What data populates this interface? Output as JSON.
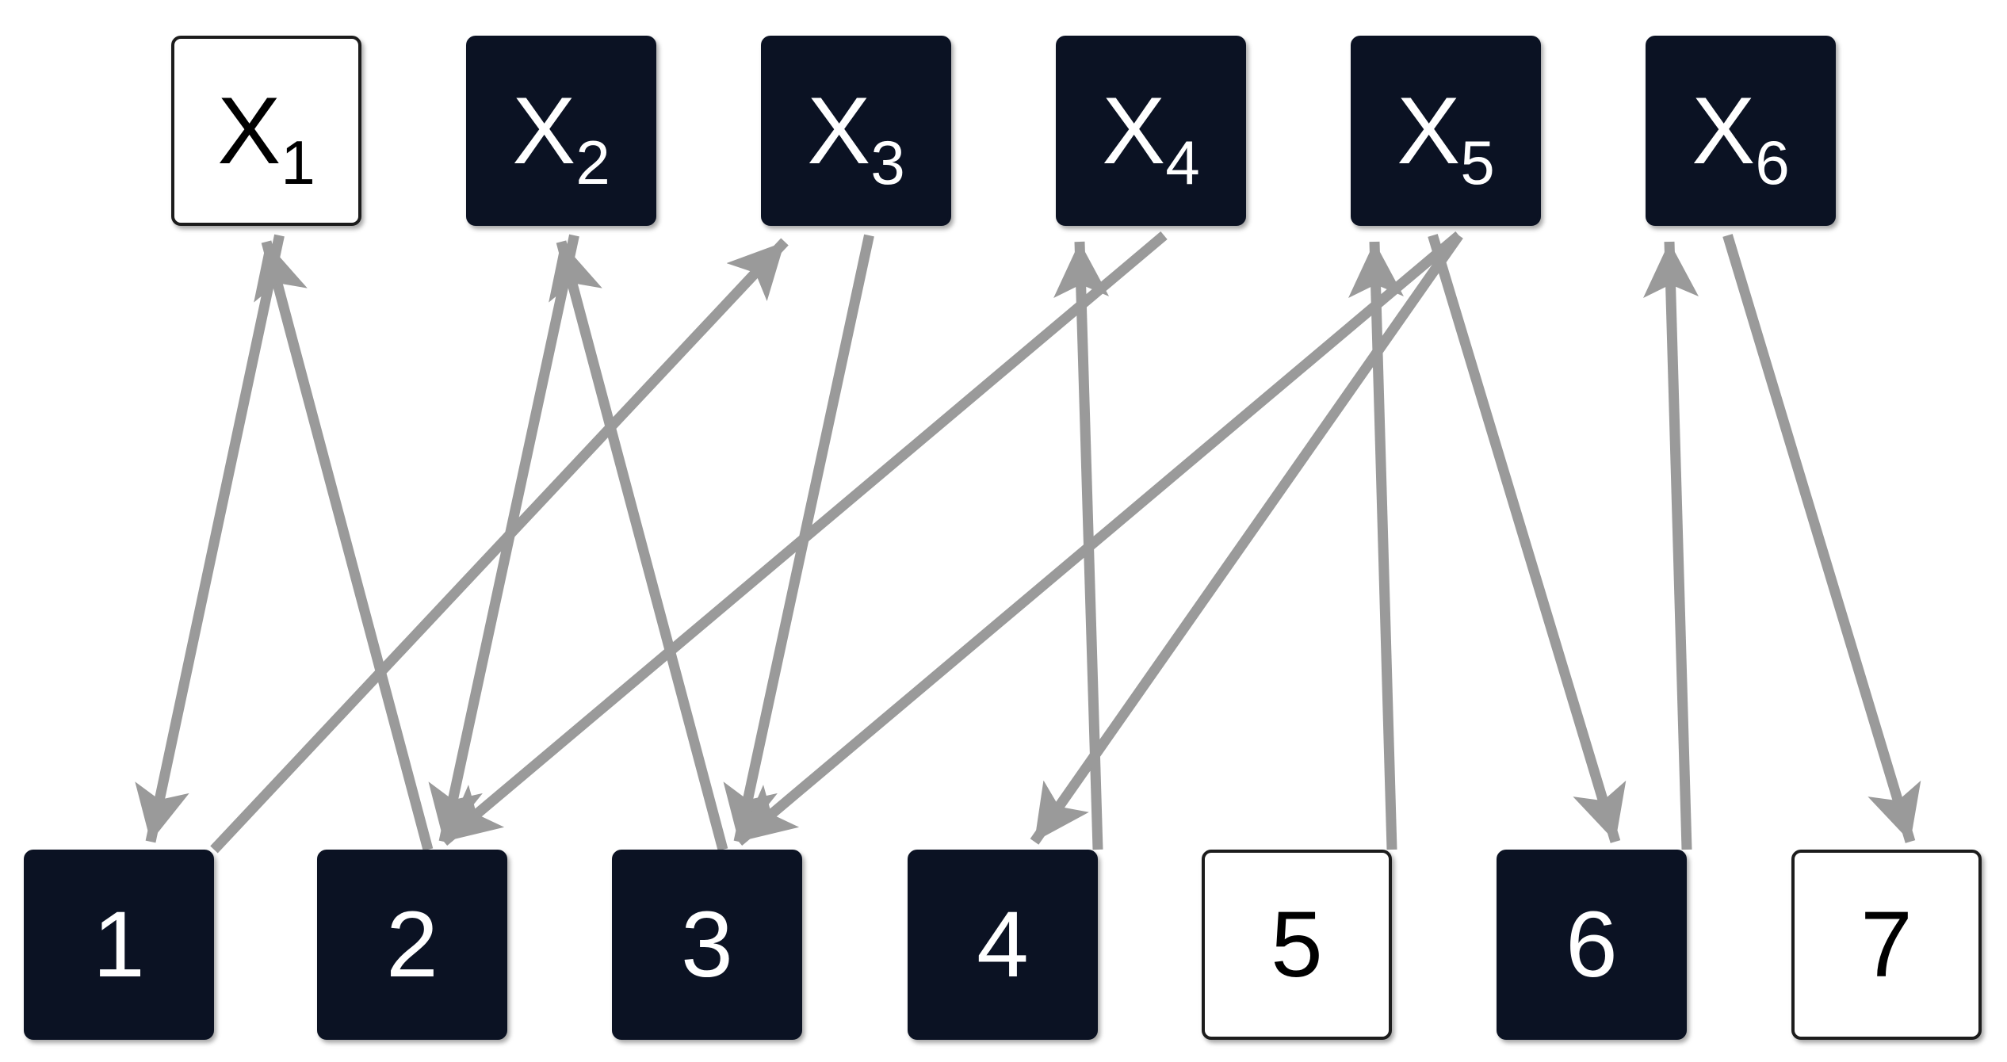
{
  "variables": [
    {
      "id": "x1",
      "name": "X",
      "index": "1",
      "fill": "white"
    },
    {
      "id": "x2",
      "name": "X",
      "index": "2",
      "fill": "dark"
    },
    {
      "id": "x3",
      "name": "X",
      "index": "3",
      "fill": "dark"
    },
    {
      "id": "x4",
      "name": "X",
      "index": "4",
      "fill": "dark"
    },
    {
      "id": "x5",
      "name": "X",
      "index": "5",
      "fill": "dark"
    },
    {
      "id": "x6",
      "name": "X",
      "index": "6",
      "fill": "dark"
    }
  ],
  "slots": [
    {
      "id": "s1",
      "label": "1",
      "fill": "dark"
    },
    {
      "id": "s2",
      "label": "2",
      "fill": "dark"
    },
    {
      "id": "s3",
      "label": "3",
      "fill": "dark"
    },
    {
      "id": "s4",
      "label": "4",
      "fill": "dark"
    },
    {
      "id": "s5",
      "label": "5",
      "fill": "white"
    },
    {
      "id": "s6",
      "label": "6",
      "fill": "dark"
    },
    {
      "id": "s7",
      "label": "7",
      "fill": "white"
    }
  ],
  "edges": [
    {
      "from": "x1",
      "to": "s1"
    },
    {
      "from": "s2",
      "to": "x1"
    },
    {
      "from": "x2",
      "to": "s2"
    },
    {
      "from": "s3",
      "to": "x2"
    },
    {
      "from": "s1",
      "to": "x3"
    },
    {
      "from": "x3",
      "to": "s3"
    },
    {
      "from": "x4",
      "to": "s2"
    },
    {
      "from": "s4",
      "to": "x4"
    },
    {
      "from": "x5",
      "to": "s3"
    },
    {
      "from": "x5",
      "to": "s4"
    },
    {
      "from": "s5",
      "to": "x5"
    },
    {
      "from": "x5",
      "to": "s6"
    },
    {
      "from": "s6",
      "to": "x6"
    },
    {
      "from": "x6",
      "to": "s7"
    }
  ],
  "colors": {
    "dark_node": "#0b1223",
    "light_node": "#ffffff",
    "arrow": "#9a9a9a"
  }
}
